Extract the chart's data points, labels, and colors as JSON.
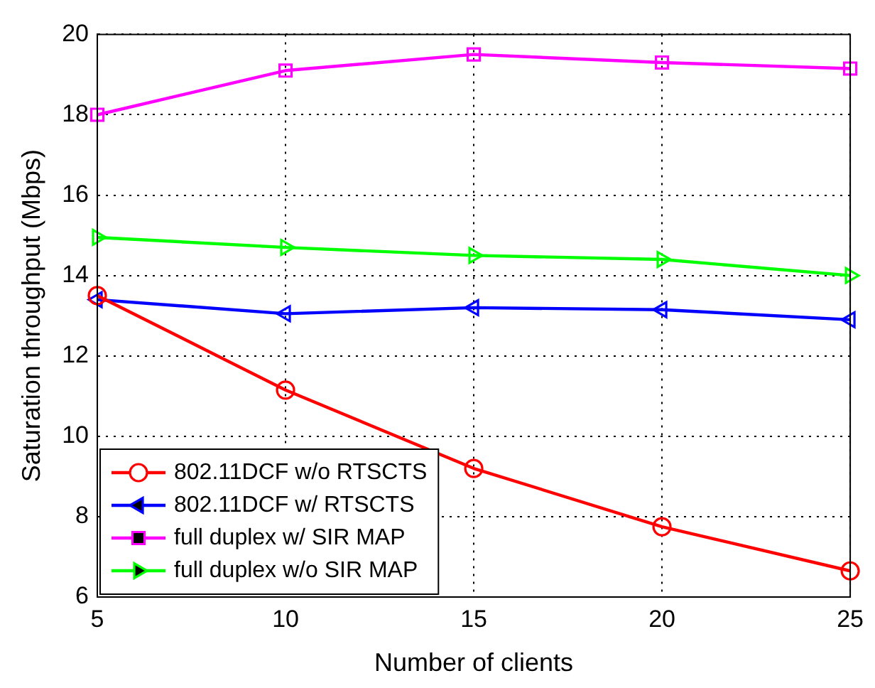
{
  "chart_data": {
    "type": "line",
    "xlabel": "Number of clients",
    "ylabel": "Saturation throughput (Mbps)",
    "x": [
      5,
      10,
      15,
      20,
      25
    ],
    "xlim": [
      5,
      25
    ],
    "xticks": [
      5,
      10,
      15,
      20,
      25
    ],
    "ylim": [
      6,
      20
    ],
    "yticks": [
      6,
      8,
      10,
      12,
      14,
      16,
      18,
      20
    ],
    "grid": true,
    "legend": "bottom left",
    "line_style": "solid",
    "series": [
      {
        "name": "802.11DCF w/o RTSCTS",
        "color": "#ff0000",
        "marker": "circle",
        "values": [
          13.5,
          11.15,
          9.2,
          7.75,
          6.65
        ]
      },
      {
        "name": "802.11DCF w/ RTSCTS",
        "color": "#0000ff",
        "marker": "triangle-left",
        "values": [
          13.4,
          13.05,
          13.2,
          13.15,
          12.9
        ]
      },
      {
        "name": "full duplex w/ SIR MAP",
        "color": "#ff00ff",
        "marker": "square",
        "values": [
          18.0,
          19.1,
          19.5,
          19.3,
          19.15
        ]
      },
      {
        "name": "full duplex w/o SIR MAP",
        "color": "#00ff00",
        "marker": "triangle-right",
        "values": [
          14.95,
          14.7,
          14.5,
          14.4,
          14.0
        ]
      }
    ]
  }
}
